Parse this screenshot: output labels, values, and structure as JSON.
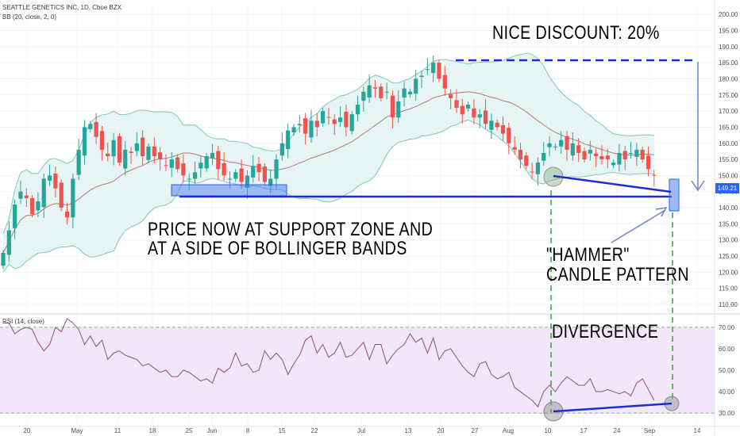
{
  "header": {
    "title": "SEATTLE GENETICS INC, 1D, Cboe BZX",
    "indicator": "BB (20, close, 2, 0)",
    "rsi_label": "RSI (14, close)"
  },
  "annotations": {
    "discount": "NICE DISCOUNT: 20%",
    "support_line1": "PRICE NOW AT SUPPORT ZONE AND",
    "support_line2": "AT A SIDE OF BOLLINGER BANDS",
    "hammer_line1": "\"HAMMER\"",
    "hammer_line2": "CANDLE PATTERN",
    "divergence": "DIVERGENCE"
  },
  "last_price": "149.21",
  "colors": {
    "up": "#26a69a",
    "down": "#ef5350",
    "bb_fill": "#e6f5f3",
    "bb_line": "#7fc8bd",
    "bb_basis": "#b27b7b",
    "support": "#1b2ed6",
    "rsi_line": "#8e4f7a",
    "rsi_band": "#f2e6fa"
  },
  "chart_data": [
    {
      "type": "candlestick",
      "title": "SEATTLE GENETICS INC, 1D, Cboe BZX",
      "y_ticks": [
        "200.00",
        "195.00",
        "190.00",
        "185.00",
        "180.00",
        "175.00",
        "170.00",
        "165.00",
        "160.00",
        "155.00",
        "150.00",
        "145.00",
        "140.00",
        "135.00",
        "130.00",
        "125.00",
        "120.00",
        "115.00",
        "110.00"
      ],
      "x_ticks": [
        "20",
        "May",
        "11",
        "18",
        "25",
        "Jun",
        "8",
        "15",
        "22",
        "Jul",
        "13",
        "20",
        "27",
        "Aug",
        "10",
        "17",
        "24",
        "Sep",
        "14"
      ],
      "ylim": [
        107,
        202
      ],
      "close": [
        126,
        133,
        141,
        145,
        143,
        138,
        142,
        149,
        150,
        146,
        140,
        137,
        149,
        158,
        165,
        166,
        162,
        158,
        156,
        161,
        154,
        158,
        157,
        160,
        156,
        159,
        156,
        155,
        153,
        155,
        152,
        150,
        149,
        151,
        154,
        156,
        157,
        152,
        150,
        149,
        151,
        148,
        150,
        153,
        151,
        148,
        149,
        155,
        160,
        164,
        165,
        166,
        163,
        167,
        165,
        170,
        168,
        166,
        168,
        165,
        169,
        172,
        176,
        178,
        177,
        174,
        176,
        168,
        173,
        177,
        176,
        180,
        181,
        183,
        185,
        180,
        177,
        174,
        171,
        169,
        172,
        168,
        169,
        166,
        167,
        165,
        163,
        160,
        158,
        155,
        153,
        151,
        154,
        157,
        160,
        159,
        161,
        158,
        160,
        157,
        155,
        158,
        156,
        155,
        155,
        154,
        157,
        155,
        157,
        158,
        155,
        152,
        150
      ]
    },
    {
      "type": "line",
      "title": "RSI (14, close)",
      "y_ticks": [
        "70.00",
        "60.00",
        "50.00",
        "40.00",
        "30.00"
      ],
      "ylim": [
        25,
        75
      ],
      "values": [
        72,
        72,
        67,
        69,
        70,
        69,
        63,
        59,
        62,
        70,
        68,
        74,
        72,
        69,
        62,
        66,
        61,
        64,
        55,
        58,
        59,
        57,
        56,
        55,
        52,
        53,
        51,
        49,
        50,
        47,
        47,
        50,
        49,
        47,
        45,
        46,
        44,
        51,
        49,
        51,
        58,
        52,
        53,
        49,
        50,
        59,
        55,
        58,
        55,
        48,
        53,
        57,
        64,
        66,
        58,
        62,
        56,
        58,
        63,
        56,
        57,
        60,
        63,
        55,
        62,
        62,
        53,
        57,
        60,
        62,
        67,
        63,
        65,
        58,
        65,
        55,
        59,
        60,
        56,
        52,
        49,
        47,
        53,
        54,
        48,
        46,
        47,
        49,
        42,
        40,
        38,
        36,
        33,
        40,
        43,
        40,
        44,
        47,
        45,
        43,
        43,
        46,
        40,
        40,
        41,
        40,
        39,
        40,
        38,
        44,
        46,
        41,
        36
      ]
    }
  ]
}
